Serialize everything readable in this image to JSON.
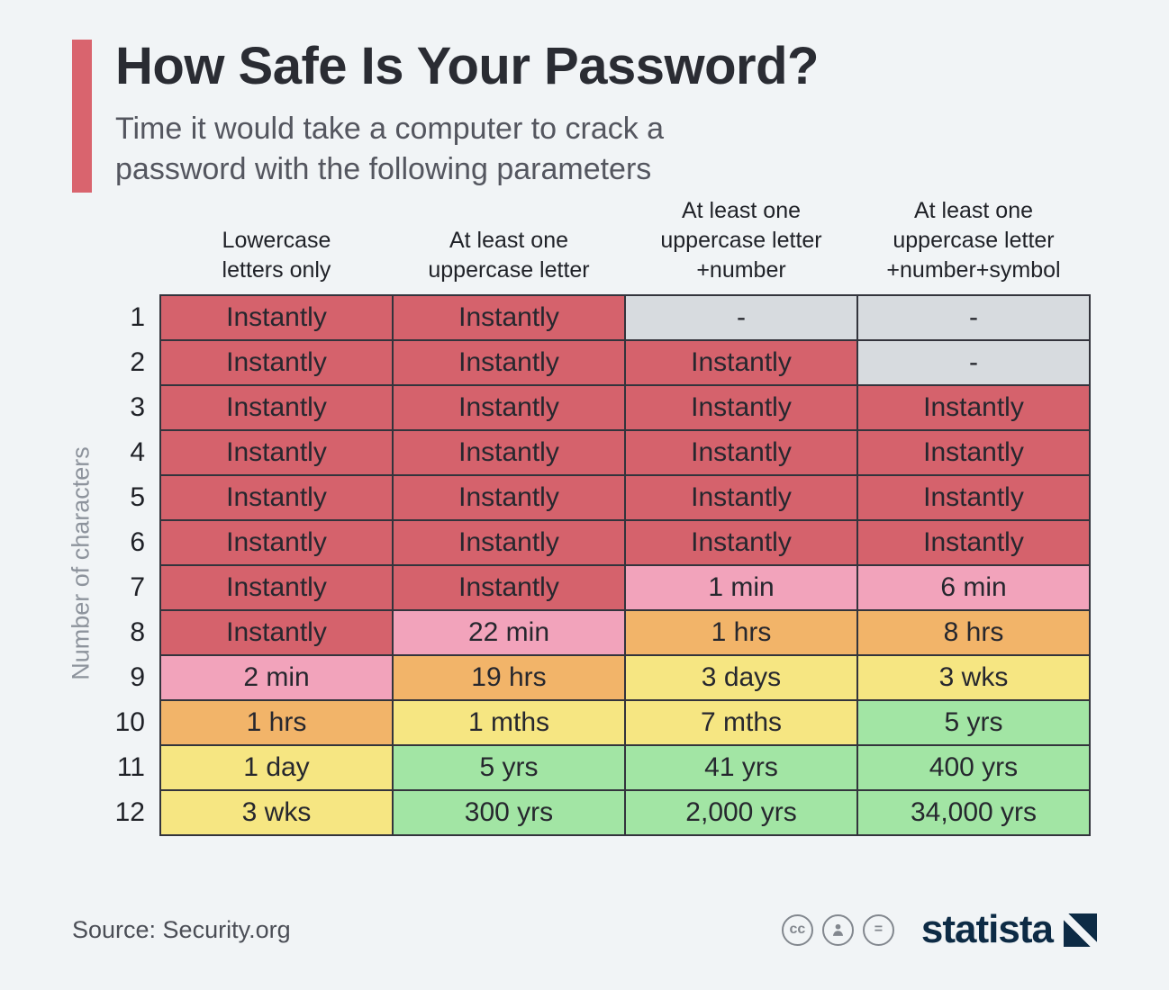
{
  "header": {
    "title": "How Safe Is Your Password?",
    "subtitle": "Time it would take a computer to crack a\npassword with the following parameters"
  },
  "chart_data": {
    "type": "table",
    "title": "How Safe Is Your Password?",
    "subtitle": "Time it would take a computer to crack a password with the following parameters",
    "ylabel": "Number of characters",
    "columns": [
      "Lowercase\nletters only",
      "At least one\nuppercase letter",
      "At least one\nuppercase letter\n+number",
      "At least one\nuppercase letter\n+number+symbol"
    ],
    "palette": {
      "red": "#d5626c",
      "pink": "#f2a3bb",
      "orange": "#f2b469",
      "yellow": "#f6e682",
      "green": "#a2e5a4",
      "gray": "#d7dbdf"
    },
    "rows": [
      {
        "label": "1",
        "values": [
          "Instantly",
          "Instantly",
          "-",
          "-"
        ],
        "colors": [
          "red",
          "red",
          "gray",
          "gray"
        ]
      },
      {
        "label": "2",
        "values": [
          "Instantly",
          "Instantly",
          "Instantly",
          "-"
        ],
        "colors": [
          "red",
          "red",
          "red",
          "gray"
        ]
      },
      {
        "label": "3",
        "values": [
          "Instantly",
          "Instantly",
          "Instantly",
          "Instantly"
        ],
        "colors": [
          "red",
          "red",
          "red",
          "red"
        ]
      },
      {
        "label": "4",
        "values": [
          "Instantly",
          "Instantly",
          "Instantly",
          "Instantly"
        ],
        "colors": [
          "red",
          "red",
          "red",
          "red"
        ]
      },
      {
        "label": "5",
        "values": [
          "Instantly",
          "Instantly",
          "Instantly",
          "Instantly"
        ],
        "colors": [
          "red",
          "red",
          "red",
          "red"
        ]
      },
      {
        "label": "6",
        "values": [
          "Instantly",
          "Instantly",
          "Instantly",
          "Instantly"
        ],
        "colors": [
          "red",
          "red",
          "red",
          "red"
        ]
      },
      {
        "label": "7",
        "values": [
          "Instantly",
          "Instantly",
          "1 min",
          "6 min"
        ],
        "colors": [
          "red",
          "red",
          "pink",
          "pink"
        ]
      },
      {
        "label": "8",
        "values": [
          "Instantly",
          "22 min",
          "1 hrs",
          "8 hrs"
        ],
        "colors": [
          "red",
          "pink",
          "orange",
          "orange"
        ]
      },
      {
        "label": "9",
        "values": [
          "2 min",
          "19 hrs",
          "3 days",
          "3 wks"
        ],
        "colors": [
          "pink",
          "orange",
          "yellow",
          "yellow"
        ]
      },
      {
        "label": "10",
        "values": [
          "1 hrs",
          "1 mths",
          "7 mths",
          "5 yrs"
        ],
        "colors": [
          "orange",
          "yellow",
          "yellow",
          "green"
        ]
      },
      {
        "label": "11",
        "values": [
          "1 day",
          "5 yrs",
          "41 yrs",
          "400 yrs"
        ],
        "colors": [
          "yellow",
          "green",
          "green",
          "green"
        ]
      },
      {
        "label": "12",
        "values": [
          "3 wks",
          "300 yrs",
          "2,000 yrs",
          "34,000 yrs"
        ],
        "colors": [
          "yellow",
          "green",
          "green",
          "green"
        ]
      }
    ]
  },
  "footer": {
    "source": "Source: Security.org",
    "cc_label": "cc",
    "nd_label": "=",
    "brand": "statista"
  }
}
